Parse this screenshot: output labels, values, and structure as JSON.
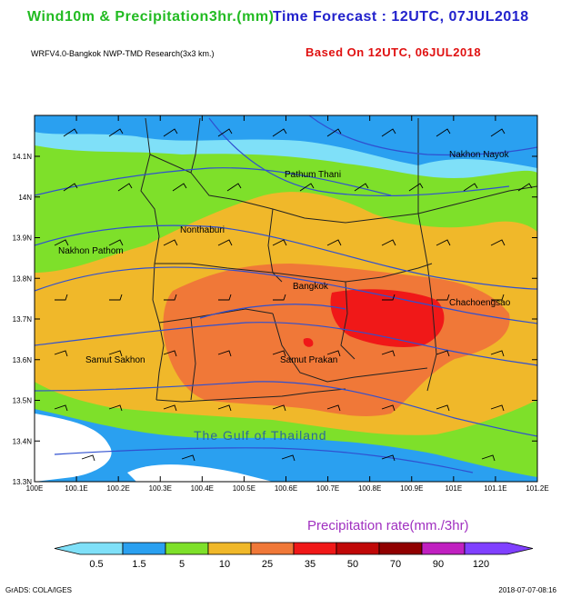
{
  "header": {
    "title_left": "Wind10m & Precipitation3hr.(mm)",
    "title_right": "Time Forecast : 12UTC, 07JUL2018",
    "model": "WRFV4.0-Bangkok NWP-TMD Research(3x3 km.)",
    "based_on": "Based On 12UTC, 06JUL2018"
  },
  "map": {
    "lat_labels": [
      "14.1N",
      "14N",
      "13.9N",
      "13.8N",
      "13.7N",
      "13.6N",
      "13.5N",
      "13.4N",
      "13.3N"
    ],
    "lon_labels": [
      "100E",
      "100.1E",
      "100.2E",
      "100.3E",
      "100.4E",
      "100.5E",
      "100.6E",
      "100.7E",
      "100.8E",
      "100.9E",
      "101E",
      "101.1E",
      "101.2E"
    ],
    "places": [
      {
        "key": "nakhon_nayok",
        "name": "Nakhon Nayok"
      },
      {
        "key": "pathum_thani",
        "name": "Pathum Thani"
      },
      {
        "key": "nonthaburi",
        "name": "Nonthaburi"
      },
      {
        "key": "nakhon_pathom",
        "name": "Nakhon Pathom"
      },
      {
        "key": "bangkok",
        "name": "Bangkok"
      },
      {
        "key": "chachoengsao",
        "name": "Chachoengsao"
      },
      {
        "key": "samut_sakhon",
        "name": "Samut Sakhon"
      },
      {
        "key": "samut_prakan",
        "name": "Samut Prakan"
      },
      {
        "key": "gulf",
        "name": "The Gulf of Thailand"
      }
    ]
  },
  "legend": {
    "title": "Precipitation rate(mm./3hr)",
    "values": [
      "0.5",
      "1.5",
      "5",
      "10",
      "25",
      "35",
      "50",
      "70",
      "90",
      "120"
    ],
    "colors": [
      "#7fe0f8",
      "#2aa0f0",
      "#7ee02a",
      "#f0b82a",
      "#f07838",
      "#f01818",
      "#c00808",
      "#900000",
      "#c020c0",
      "#8040ff"
    ]
  },
  "footer": {
    "grads": "GrADS: COLA/IGES",
    "timestamp": "2018-07-07-08:16"
  }
}
